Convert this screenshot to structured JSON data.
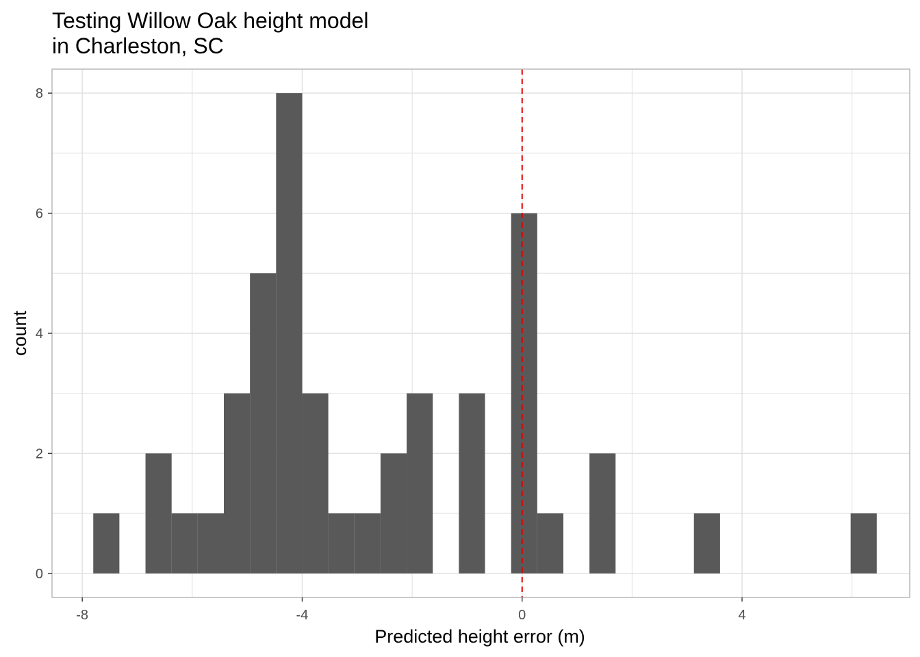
{
  "chart_data": {
    "type": "bar",
    "subtype": "histogram",
    "title_lines": [
      "Testing Willow Oak height model",
      "in Charleston, SC"
    ],
    "xlabel": "Predicted height error (m)",
    "ylabel": "count",
    "xlim": [
      -8.55,
      7.05
    ],
    "ylim": [
      -0.4,
      8.4
    ],
    "x_ticks": [
      -8,
      -4,
      0,
      4
    ],
    "x_tick_labels": [
      "-8",
      "-4",
      "0",
      "4"
    ],
    "y_ticks": [
      0,
      2,
      4,
      6,
      8
    ],
    "y_tick_labels": [
      "0",
      "2",
      "4",
      "6",
      "8"
    ],
    "x_minor_ticks": [
      -6,
      -2,
      2,
      6
    ],
    "y_minor_ticks": [
      1,
      3,
      5,
      7
    ],
    "grid": true,
    "legend": "none",
    "bins": [
      {
        "x0": -7.8,
        "x1": -7.325,
        "count": 1
      },
      {
        "x0": -6.85,
        "x1": -6.375,
        "count": 2
      },
      {
        "x0": -6.375,
        "x1": -5.9,
        "count": 1
      },
      {
        "x0": -5.9,
        "x1": -5.425,
        "count": 1
      },
      {
        "x0": -5.425,
        "x1": -4.95,
        "count": 3
      },
      {
        "x0": -4.95,
        "x1": -4.475,
        "count": 5
      },
      {
        "x0": -4.475,
        "x1": -4.0,
        "count": 8
      },
      {
        "x0": -4.0,
        "x1": -3.525,
        "count": 3
      },
      {
        "x0": -3.525,
        "x1": -3.05,
        "count": 1
      },
      {
        "x0": -3.05,
        "x1": -2.575,
        "count": 1
      },
      {
        "x0": -2.575,
        "x1": -2.1,
        "count": 2
      },
      {
        "x0": -2.1,
        "x1": -1.625,
        "count": 3
      },
      {
        "x0": -1.15,
        "x1": -0.675,
        "count": 3
      },
      {
        "x0": -0.2,
        "x1": 0.275,
        "count": 6
      },
      {
        "x0": 0.275,
        "x1": 0.75,
        "count": 1
      },
      {
        "x0": 1.225,
        "x1": 1.7,
        "count": 2
      },
      {
        "x0": 3.125,
        "x1": 3.6,
        "count": 1
      },
      {
        "x0": 5.975,
        "x1": 6.45,
        "count": 1
      }
    ],
    "reference_line": {
      "x": 0,
      "style": "dashed"
    },
    "colors": {
      "bar": "#595959",
      "reference_line": "#e00000",
      "grid": "#e0e0e0",
      "panel_border": "#b3b3b3"
    }
  }
}
